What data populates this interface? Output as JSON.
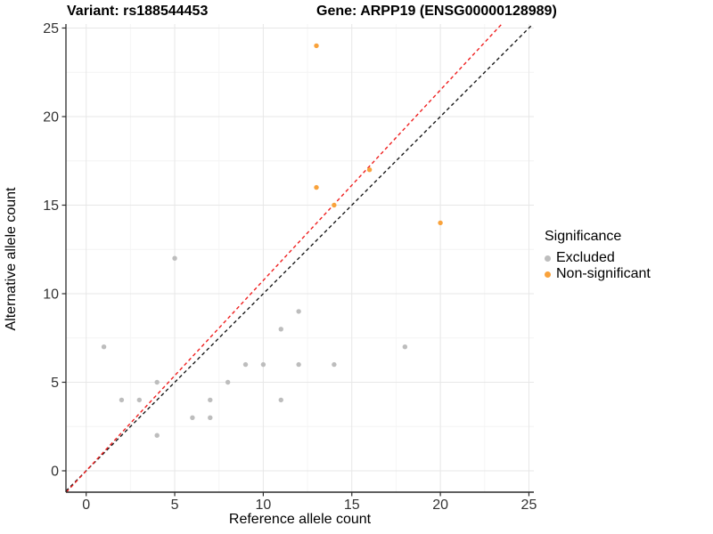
{
  "titles": {
    "variant": "Variant: rs188544453",
    "gene": "Gene: ARPP19 (ENSG00000128989)"
  },
  "chart_data": {
    "type": "scatter",
    "xlabel": "Reference allele count",
    "ylabel": "Alternative allele count",
    "xlim": [
      0,
      25
    ],
    "ylim": [
      0,
      25
    ],
    "xticks": [
      0,
      5,
      10,
      15,
      20,
      25
    ],
    "yticks": [
      0,
      5,
      10,
      15,
      20,
      25
    ],
    "minor_tick_step": 2.5,
    "grid": "major+minor",
    "series": [
      {
        "name": "Excluded",
        "color": "#BDBDBD",
        "points": [
          [
            1,
            7
          ],
          [
            2,
            4
          ],
          [
            3,
            4
          ],
          [
            4,
            2
          ],
          [
            4,
            5
          ],
          [
            5,
            12
          ],
          [
            6,
            3
          ],
          [
            7,
            3
          ],
          [
            7,
            4
          ],
          [
            8,
            5
          ],
          [
            9,
            6
          ],
          [
            10,
            6
          ],
          [
            11,
            4
          ],
          [
            11,
            8
          ],
          [
            12,
            6
          ],
          [
            12,
            9
          ],
          [
            14,
            6
          ],
          [
            18,
            7
          ]
        ]
      },
      {
        "name": "Non-significant",
        "color": "#F9A23B",
        "points": [
          [
            13,
            16
          ],
          [
            13,
            24
          ],
          [
            14,
            15
          ],
          [
            16,
            17
          ],
          [
            20,
            14
          ]
        ]
      }
    ],
    "lines": [
      {
        "name": "identity-line",
        "slope": 1.0,
        "intercept": 0,
        "color": "#1A1A1A",
        "style": "dashed"
      },
      {
        "name": "expected-ratio-line",
        "slope": 1.075,
        "intercept": 0,
        "color": "#EF1F1F",
        "style": "dashed"
      }
    ],
    "legend": {
      "title": "Significance",
      "position": "right",
      "items": [
        {
          "label": "Excluded",
          "color": "#BDBDBD"
        },
        {
          "label": "Non-significant",
          "color": "#F9A23B"
        }
      ]
    },
    "colors": {
      "grid_major": "#E7E7E7",
      "grid_minor": "#F4F4F4",
      "axis_line": "#2B2B2B",
      "tick_label": "#333333"
    }
  }
}
